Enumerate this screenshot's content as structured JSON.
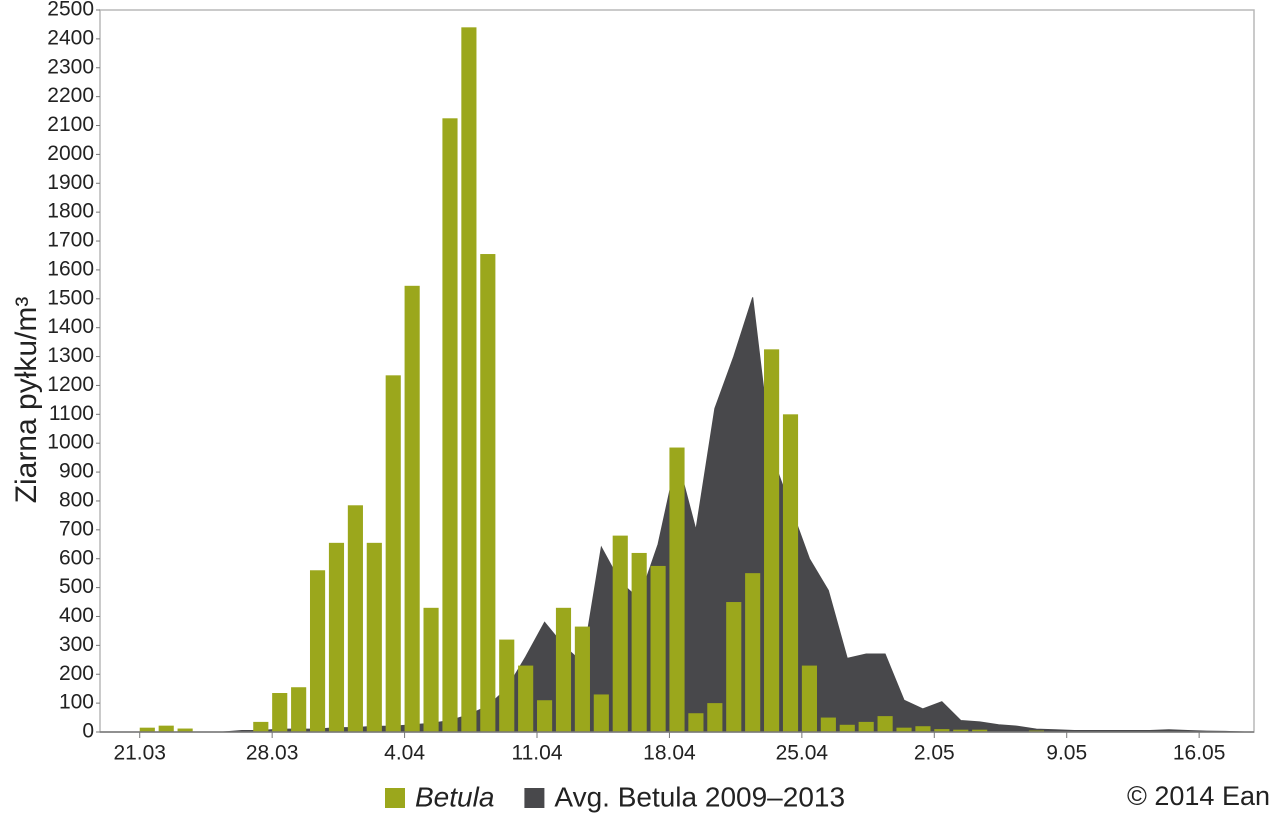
{
  "chart_data": {
    "type": "bar",
    "y_label": "Ziarna pyłku/m³",
    "categories": [
      null,
      null,
      "21.03",
      null,
      null,
      null,
      null,
      null,
      null,
      "28.03",
      null,
      null,
      null,
      null,
      null,
      null,
      "4.04",
      null,
      null,
      null,
      null,
      null,
      null,
      "11.04",
      null,
      null,
      null,
      null,
      null,
      null,
      "18.04",
      null,
      null,
      null,
      null,
      null,
      null,
      "25.04",
      null,
      null,
      null,
      null,
      null,
      null,
      "2.05",
      null,
      null,
      null,
      null,
      null,
      null,
      "9.05",
      null,
      null,
      null,
      null,
      null,
      null,
      "16.05",
      null,
      null
    ],
    "series": [
      {
        "name": "Betula",
        "color": "#9ba71c",
        "type": "bar",
        "values": [
          0,
          0,
          15,
          22,
          12,
          0,
          0,
          0,
          35,
          135,
          155,
          560,
          655,
          785,
          655,
          1235,
          1545,
          430,
          2125,
          2440,
          1655,
          320,
          230,
          110,
          430,
          365,
          130,
          680,
          620,
          575,
          985,
          65,
          100,
          450,
          550,
          1325,
          1100,
          230,
          50,
          25,
          35,
          55,
          15,
          20,
          10,
          8,
          8,
          0,
          0,
          5,
          0,
          0,
          0,
          0,
          0,
          0,
          0,
          0,
          0,
          0,
          0
        ]
      },
      {
        "name": "Avg. Betula 2009–2013",
        "color": "#48484b",
        "type": "area",
        "values": [
          0,
          0,
          0,
          0,
          0,
          0,
          0,
          5,
          5,
          10,
          10,
          10,
          15,
          15,
          20,
          20,
          25,
          30,
          40,
          60,
          90,
          150,
          260,
          380,
          300,
          240,
          640,
          520,
          460,
          650,
          950,
          700,
          1120,
          1300,
          1505,
          960,
          780,
          600,
          490,
          255,
          270,
          270,
          110,
          80,
          105,
          40,
          35,
          25,
          20,
          10,
          8,
          5,
          5,
          5,
          5,
          5,
          8,
          5,
          3,
          2,
          0
        ]
      }
    ],
    "ylim": [
      0,
      2500
    ],
    "yticks": [
      0,
      100,
      200,
      300,
      400,
      500,
      600,
      700,
      800,
      900,
      1000,
      1100,
      1200,
      1300,
      1400,
      1500,
      1600,
      1700,
      1800,
      1900,
      2000,
      2100,
      2200,
      2300,
      2400,
      2500
    ],
    "grid": false,
    "annotation": "© 2014 Ean"
  }
}
